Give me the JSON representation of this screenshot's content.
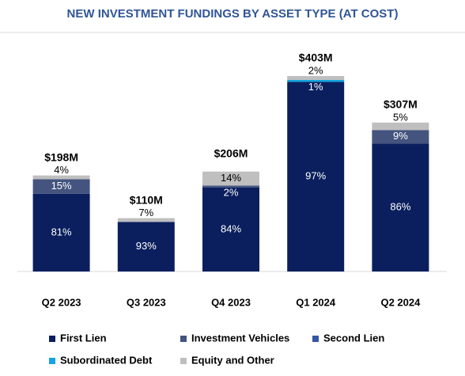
{
  "chart_data": {
    "type": "stacked_bar",
    "title": "NEW INVESTMENT FUNDINGS BY ASSET TYPE (AT COST)",
    "categories": [
      "Q2 2023",
      "Q3 2023",
      "Q4 2023",
      "Q1 2024",
      "Q2 2024"
    ],
    "totals": {
      "values": [
        198,
        110,
        206,
        403,
        307
      ],
      "value_labels": [
        "$198M",
        "$110M",
        "$206M",
        "$403M",
        "$307M"
      ]
    },
    "series": [
      {
        "name": "First Lien",
        "color": "#0b1f5e",
        "values": [
          81,
          93,
          84,
          97,
          86
        ],
        "value_labels": [
          "81%",
          "93%",
          "84%",
          "97%",
          "86%"
        ]
      },
      {
        "name": "Investment Vehicles",
        "color": "#44547f",
        "values": [
          15,
          null,
          2,
          null,
          9
        ],
        "value_labels": [
          "15%",
          null,
          "2%",
          null,
          "9%"
        ]
      },
      {
        "name": "Second Lien",
        "color": "#3556a3",
        "values": [
          null,
          null,
          null,
          null,
          null
        ],
        "value_labels": [
          null,
          null,
          null,
          null,
          null
        ]
      },
      {
        "name": "Subordinated Debt",
        "color": "#12a5e0",
        "values": [
          null,
          null,
          null,
          1,
          null
        ],
        "value_labels": [
          null,
          null,
          null,
          "1%",
          null
        ]
      },
      {
        "name": "Equity and Other",
        "color": "#bfbfbf",
        "values": [
          4,
          7,
          14,
          2,
          5
        ],
        "value_labels": [
          "4%",
          "7%",
          "14%",
          "2%",
          "5%"
        ]
      }
    ]
  }
}
